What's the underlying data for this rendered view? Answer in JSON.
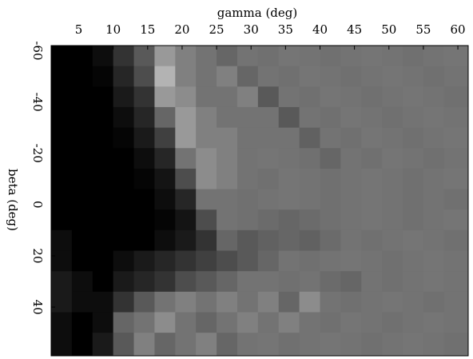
{
  "chart_data": {
    "type": "heatmap",
    "x_label": "gamma (deg)",
    "y_label": "beta (deg)",
    "xlim": [
      1,
      61.5
    ],
    "xticks": [
      5,
      10,
      15,
      20,
      25,
      30,
      35,
      40,
      45,
      50,
      55,
      60
    ],
    "ylim": [
      -62,
      59
    ],
    "yticks": [
      -60,
      -40,
      -20,
      0,
      20,
      40
    ],
    "x": [
      2.5,
      5.5,
      8.5,
      11.5,
      14.5,
      17.5,
      20.5,
      23.5,
      26.5,
      29.5,
      32.5,
      35.5,
      38.5,
      41.5,
      44.5,
      47.5,
      50.5,
      53.5,
      56.5,
      59.5
    ],
    "y": [
      -58,
      -50,
      -42,
      -34,
      -26,
      -18,
      -10,
      -2,
      6,
      14,
      22,
      30,
      38,
      46,
      54
    ],
    "z": [
      [
        0,
        0,
        0.05,
        0.2,
        0.35,
        0.6,
        0.5,
        0.45,
        0.4,
        0.45,
        0.44,
        0.46,
        0.45,
        0.44,
        0.45,
        0.46,
        0.45,
        0.44,
        0.45,
        0.46
      ],
      [
        0,
        0,
        0.02,
        0.15,
        0.3,
        0.7,
        0.5,
        0.45,
        0.5,
        0.4,
        0.45,
        0.44,
        0.46,
        0.45,
        0.44,
        0.45,
        0.46,
        0.45,
        0.44,
        0.45
      ],
      [
        0,
        0,
        0,
        0.1,
        0.2,
        0.6,
        0.55,
        0.45,
        0.45,
        0.5,
        0.35,
        0.45,
        0.44,
        0.46,
        0.45,
        0.44,
        0.45,
        0.46,
        0.45,
        0.44
      ],
      [
        0,
        0,
        0,
        0.05,
        0.15,
        0.4,
        0.6,
        0.5,
        0.45,
        0.45,
        0.45,
        0.35,
        0.45,
        0.44,
        0.46,
        0.45,
        0.44,
        0.45,
        0.46,
        0.45
      ],
      [
        0,
        0,
        0,
        0.02,
        0.1,
        0.25,
        0.6,
        0.5,
        0.5,
        0.45,
        0.45,
        0.45,
        0.38,
        0.45,
        0.44,
        0.46,
        0.45,
        0.44,
        0.45,
        0.46
      ],
      [
        0,
        0,
        0,
        0,
        0.05,
        0.15,
        0.45,
        0.55,
        0.5,
        0.45,
        0.46,
        0.45,
        0.44,
        0.4,
        0.45,
        0.44,
        0.46,
        0.45,
        0.44,
        0.45
      ],
      [
        0,
        0,
        0,
        0,
        0.02,
        0.08,
        0.3,
        0.55,
        0.5,
        0.45,
        0.44,
        0.46,
        0.45,
        0.44,
        0.45,
        0.46,
        0.45,
        0.44,
        0.45,
        0.46
      ],
      [
        0,
        0,
        0,
        0,
        0,
        0.05,
        0.15,
        0.45,
        0.45,
        0.44,
        0.45,
        0.46,
        0.45,
        0.44,
        0.45,
        0.46,
        0.45,
        0.44,
        0.45,
        0.44
      ],
      [
        0,
        0,
        0,
        0,
        0,
        0.02,
        0.08,
        0.3,
        0.45,
        0.44,
        0.42,
        0.4,
        0.42,
        0.44,
        0.45,
        0.46,
        0.45,
        0.44,
        0.45,
        0.46
      ],
      [
        0.05,
        0,
        0,
        0,
        0,
        0.05,
        0.1,
        0.2,
        0.4,
        0.35,
        0.38,
        0.4,
        0.38,
        0.42,
        0.45,
        0.44,
        0.45,
        0.46,
        0.45,
        0.44
      ],
      [
        0.05,
        0,
        0,
        0.05,
        0.1,
        0.15,
        0.2,
        0.25,
        0.3,
        0.35,
        0.4,
        0.45,
        0.44,
        0.45,
        0.46,
        0.45,
        0.44,
        0.45,
        0.46,
        0.45
      ],
      [
        0.1,
        0.05,
        0,
        0.1,
        0.15,
        0.2,
        0.3,
        0.35,
        0.4,
        0.45,
        0.45,
        0.44,
        0.45,
        0.42,
        0.4,
        0.45,
        0.44,
        0.45,
        0.46,
        0.45
      ],
      [
        0.1,
        0.05,
        0.05,
        0.2,
        0.35,
        0.45,
        0.5,
        0.45,
        0.5,
        0.45,
        0.5,
        0.4,
        0.55,
        0.45,
        0.44,
        0.45,
        0.46,
        0.45,
        0.44,
        0.45
      ],
      [
        0.05,
        0,
        0.05,
        0.4,
        0.45,
        0.55,
        0.45,
        0.4,
        0.45,
        0.5,
        0.45,
        0.5,
        0.45,
        0.44,
        0.46,
        0.45,
        0.44,
        0.45,
        0.46,
        0.45
      ],
      [
        0.05,
        0,
        0.1,
        0.35,
        0.5,
        0.4,
        0.45,
        0.5,
        0.4,
        0.45,
        0.46,
        0.44,
        0.45,
        0.46,
        0.45,
        0.44,
        0.45,
        0.46,
        0.45,
        0.44
      ]
    ]
  }
}
